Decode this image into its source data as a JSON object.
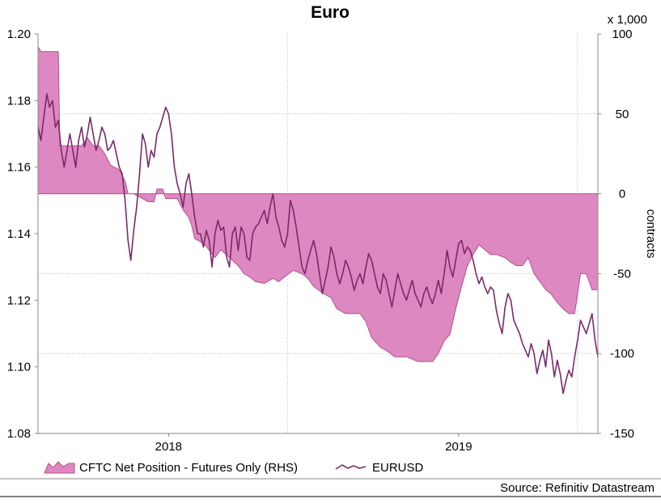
{
  "chart_data": {
    "type": "area+line",
    "title": "Euro",
    "left_axis": {
      "min": 1.08,
      "max": 1.2,
      "ticks": [
        "1.20",
        "1.18",
        "1.16",
        "1.14",
        "1.12",
        "1.10",
        "1.08"
      ]
    },
    "right_axis": {
      "min": -150,
      "max": 100,
      "ticks": [
        "100",
        "50",
        "0",
        "-50",
        "-100",
        "-150"
      ],
      "unit_note": "x 1,000",
      "label": "contracts"
    },
    "x_axis": {
      "start": 2017.55,
      "end": 2019.48,
      "labels": [
        {
          "text": "2018",
          "at": 2018.0
        },
        {
          "text": "2019",
          "at": 2019.0
        }
      ]
    },
    "colors": {
      "area_fill": "#dd88c0",
      "area_edge": "#b4508f",
      "line": "#7b2a69",
      "grid": "#bbbbbb",
      "axis": "#888888"
    },
    "series": [
      {
        "name": "CFTC Net Position - Futures Only (RHS)",
        "kind": "area",
        "axis": "right",
        "points": [
          [
            2017.55,
            92
          ],
          [
            2017.56,
            89
          ],
          [
            2017.62,
            89
          ],
          [
            2017.625,
            30
          ],
          [
            2017.7,
            30
          ],
          [
            2017.72,
            35
          ],
          [
            2017.74,
            30
          ],
          [
            2017.76,
            30
          ],
          [
            2017.78,
            25
          ],
          [
            2017.8,
            18
          ],
          [
            2017.83,
            15
          ],
          [
            2017.85,
            8
          ],
          [
            2017.86,
            0
          ],
          [
            2017.88,
            0
          ],
          [
            2017.9,
            -2
          ],
          [
            2017.93,
            -5
          ],
          [
            2017.95,
            -5
          ],
          [
            2017.96,
            3
          ],
          [
            2017.98,
            3
          ],
          [
            2017.99,
            -3
          ],
          [
            2018.01,
            -3
          ],
          [
            2018.03,
            -3
          ],
          [
            2018.05,
            -10
          ],
          [
            2018.07,
            -15
          ],
          [
            2018.08,
            -20
          ],
          [
            2018.09,
            -28
          ],
          [
            2018.11,
            -30
          ],
          [
            2018.13,
            -33
          ],
          [
            2018.16,
            -40
          ],
          [
            2018.18,
            -35
          ],
          [
            2018.21,
            -40
          ],
          [
            2018.24,
            -45
          ],
          [
            2018.26,
            -50
          ],
          [
            2018.28,
            -52
          ],
          [
            2018.3,
            -55
          ],
          [
            2018.33,
            -56
          ],
          [
            2018.36,
            -53
          ],
          [
            2018.38,
            -55
          ],
          [
            2018.4,
            -52
          ],
          [
            2018.43,
            -48
          ],
          [
            2018.46,
            -50
          ],
          [
            2018.48,
            -53
          ],
          [
            2018.5,
            -58
          ],
          [
            2018.53,
            -62
          ],
          [
            2018.56,
            -65
          ],
          [
            2018.58,
            -72
          ],
          [
            2018.61,
            -75
          ],
          [
            2018.63,
            -75
          ],
          [
            2018.66,
            -75
          ],
          [
            2018.68,
            -80
          ],
          [
            2018.7,
            -90
          ],
          [
            2018.73,
            -96
          ],
          [
            2018.75,
            -98
          ],
          [
            2018.78,
            -102
          ],
          [
            2018.82,
            -102
          ],
          [
            2018.86,
            -105
          ],
          [
            2018.89,
            -105
          ],
          [
            2018.91,
            -105
          ],
          [
            2018.93,
            -100
          ],
          [
            2018.95,
            -92
          ],
          [
            2018.97,
            -88
          ],
          [
            2018.99,
            -72
          ],
          [
            2019.01,
            -58
          ],
          [
            2019.03,
            -45
          ],
          [
            2019.05,
            -38
          ],
          [
            2019.07,
            -32
          ],
          [
            2019.09,
            -35
          ],
          [
            2019.11,
            -38
          ],
          [
            2019.13,
            -38
          ],
          [
            2019.16,
            -40
          ],
          [
            2019.18,
            -43
          ],
          [
            2019.2,
            -45
          ],
          [
            2019.22,
            -45
          ],
          [
            2019.24,
            -40
          ],
          [
            2019.26,
            -50
          ],
          [
            2019.28,
            -55
          ],
          [
            2019.3,
            -60
          ],
          [
            2019.32,
            -63
          ],
          [
            2019.34,
            -68
          ],
          [
            2019.36,
            -72
          ],
          [
            2019.38,
            -75
          ],
          [
            2019.4,
            -75
          ],
          [
            2019.42,
            -50
          ],
          [
            2019.44,
            -50
          ],
          [
            2019.46,
            -60
          ],
          [
            2019.47,
            -60
          ],
          [
            2019.48,
            -60
          ]
        ]
      },
      {
        "name": "EURUSD",
        "kind": "line",
        "axis": "left",
        "points": [
          [
            2017.55,
            1.172
          ],
          [
            2017.56,
            1.168
          ],
          [
            2017.57,
            1.175
          ],
          [
            2017.58,
            1.182
          ],
          [
            2017.59,
            1.178
          ],
          [
            2017.6,
            1.18
          ],
          [
            2017.61,
            1.172
          ],
          [
            2017.62,
            1.174
          ],
          [
            2017.63,
            1.165
          ],
          [
            2017.64,
            1.16
          ],
          [
            2017.65,
            1.165
          ],
          [
            2017.66,
            1.17
          ],
          [
            2017.67,
            1.165
          ],
          [
            2017.68,
            1.16
          ],
          [
            2017.69,
            1.168
          ],
          [
            2017.7,
            1.172
          ],
          [
            2017.71,
            1.166
          ],
          [
            2017.72,
            1.17
          ],
          [
            2017.73,
            1.175
          ],
          [
            2017.74,
            1.17
          ],
          [
            2017.75,
            1.165
          ],
          [
            2017.76,
            1.168
          ],
          [
            2017.77,
            1.172
          ],
          [
            2017.78,
            1.17
          ],
          [
            2017.79,
            1.165
          ],
          [
            2017.8,
            1.166
          ],
          [
            2017.81,
            1.168
          ],
          [
            2017.82,
            1.164
          ],
          [
            2017.83,
            1.16
          ],
          [
            2017.84,
            1.158
          ],
          [
            2017.85,
            1.15
          ],
          [
            2017.86,
            1.138
          ],
          [
            2017.87,
            1.132
          ],
          [
            2017.88,
            1.141
          ],
          [
            2017.89,
            1.148
          ],
          [
            2017.9,
            1.158
          ],
          [
            2017.91,
            1.17
          ],
          [
            2017.92,
            1.167
          ],
          [
            2017.93,
            1.16
          ],
          [
            2017.94,
            1.165
          ],
          [
            2017.95,
            1.163
          ],
          [
            2017.96,
            1.17
          ],
          [
            2017.97,
            1.172
          ],
          [
            2017.98,
            1.175
          ],
          [
            2017.99,
            1.178
          ],
          [
            2018.0,
            1.176
          ],
          [
            2018.01,
            1.17
          ],
          [
            2018.02,
            1.16
          ],
          [
            2018.03,
            1.155
          ],
          [
            2018.04,
            1.152
          ],
          [
            2018.05,
            1.148
          ],
          [
            2018.06,
            1.155
          ],
          [
            2018.07,
            1.158
          ],
          [
            2018.08,
            1.152
          ],
          [
            2018.09,
            1.145
          ],
          [
            2018.1,
            1.14
          ],
          [
            2018.11,
            1.14
          ],
          [
            2018.12,
            1.136
          ],
          [
            2018.13,
            1.141
          ],
          [
            2018.14,
            1.138
          ],
          [
            2018.15,
            1.13
          ],
          [
            2018.16,
            1.14
          ],
          [
            2018.17,
            1.144
          ],
          [
            2018.18,
            1.141
          ],
          [
            2018.19,
            1.142
          ],
          [
            2018.2,
            1.133
          ],
          [
            2018.21,
            1.13
          ],
          [
            2018.22,
            1.14
          ],
          [
            2018.23,
            1.142
          ],
          [
            2018.24,
            1.135
          ],
          [
            2018.25,
            1.142
          ],
          [
            2018.26,
            1.14
          ],
          [
            2018.27,
            1.133
          ],
          [
            2018.28,
            1.132
          ],
          [
            2018.29,
            1.14
          ],
          [
            2018.3,
            1.142
          ],
          [
            2018.31,
            1.143
          ],
          [
            2018.32,
            1.145
          ],
          [
            2018.33,
            1.147
          ],
          [
            2018.34,
            1.143
          ],
          [
            2018.35,
            1.148
          ],
          [
            2018.36,
            1.152
          ],
          [
            2018.37,
            1.145
          ],
          [
            2018.38,
            1.142
          ],
          [
            2018.39,
            1.138
          ],
          [
            2018.4,
            1.136
          ],
          [
            2018.41,
            1.14
          ],
          [
            2018.42,
            1.15
          ],
          [
            2018.43,
            1.147
          ],
          [
            2018.44,
            1.142
          ],
          [
            2018.45,
            1.136
          ],
          [
            2018.46,
            1.13
          ],
          [
            2018.47,
            1.128
          ],
          [
            2018.48,
            1.132
          ],
          [
            2018.49,
            1.135
          ],
          [
            2018.5,
            1.138
          ],
          [
            2018.51,
            1.134
          ],
          [
            2018.52,
            1.128
          ],
          [
            2018.53,
            1.122
          ],
          [
            2018.54,
            1.126
          ],
          [
            2018.55,
            1.13
          ],
          [
            2018.56,
            1.136
          ],
          [
            2018.57,
            1.133
          ],
          [
            2018.58,
            1.128
          ],
          [
            2018.59,
            1.125
          ],
          [
            2018.6,
            1.128
          ],
          [
            2018.61,
            1.132
          ],
          [
            2018.62,
            1.13
          ],
          [
            2018.63,
            1.127
          ],
          [
            2018.64,
            1.123
          ],
          [
            2018.65,
            1.126
          ],
          [
            2018.66,
            1.128
          ],
          [
            2018.67,
            1.125
          ],
          [
            2018.68,
            1.13
          ],
          [
            2018.69,
            1.134
          ],
          [
            2018.7,
            1.132
          ],
          [
            2018.71,
            1.128
          ],
          [
            2018.72,
            1.124
          ],
          [
            2018.73,
            1.122
          ],
          [
            2018.74,
            1.128
          ],
          [
            2018.75,
            1.126
          ],
          [
            2018.76,
            1.122
          ],
          [
            2018.77,
            1.118
          ],
          [
            2018.78,
            1.123
          ],
          [
            2018.79,
            1.128
          ],
          [
            2018.8,
            1.125
          ],
          [
            2018.81,
            1.122
          ],
          [
            2018.82,
            1.12
          ],
          [
            2018.83,
            1.123
          ],
          [
            2018.84,
            1.126
          ],
          [
            2018.85,
            1.122
          ],
          [
            2018.86,
            1.12
          ],
          [
            2018.87,
            1.118
          ],
          [
            2018.88,
            1.122
          ],
          [
            2018.89,
            1.124
          ],
          [
            2018.9,
            1.121
          ],
          [
            2018.91,
            1.119
          ],
          [
            2018.92,
            1.122
          ],
          [
            2018.93,
            1.126
          ],
          [
            2018.94,
            1.122
          ],
          [
            2018.95,
            1.128
          ],
          [
            2018.96,
            1.135
          ],
          [
            2018.97,
            1.13
          ],
          [
            2018.98,
            1.127
          ],
          [
            2018.99,
            1.132
          ],
          [
            2019.0,
            1.137
          ],
          [
            2019.01,
            1.138
          ],
          [
            2019.02,
            1.134
          ],
          [
            2019.03,
            1.136
          ],
          [
            2019.04,
            1.135
          ],
          [
            2019.05,
            1.132
          ],
          [
            2019.06,
            1.128
          ],
          [
            2019.07,
            1.125
          ],
          [
            2019.08,
            1.127
          ],
          [
            2019.09,
            1.124
          ],
          [
            2019.1,
            1.122
          ],
          [
            2019.11,
            1.124
          ],
          [
            2019.12,
            1.123
          ],
          [
            2019.13,
            1.117
          ],
          [
            2019.14,
            1.113
          ],
          [
            2019.15,
            1.11
          ],
          [
            2019.16,
            1.118
          ],
          [
            2019.17,
            1.122
          ],
          [
            2019.18,
            1.12
          ],
          [
            2019.19,
            1.114
          ],
          [
            2019.2,
            1.112
          ],
          [
            2019.21,
            1.11
          ],
          [
            2019.22,
            1.107
          ],
          [
            2019.23,
            1.105
          ],
          [
            2019.24,
            1.103
          ],
          [
            2019.25,
            1.107
          ],
          [
            2019.26,
            1.104
          ],
          [
            2019.27,
            1.098
          ],
          [
            2019.28,
            1.102
          ],
          [
            2019.29,
            1.105
          ],
          [
            2019.3,
            1.1
          ],
          [
            2019.31,
            1.108
          ],
          [
            2019.32,
            1.104
          ],
          [
            2019.33,
            1.097
          ],
          [
            2019.34,
            1.102
          ],
          [
            2019.35,
            1.098
          ],
          [
            2019.36,
            1.092
          ],
          [
            2019.37,
            1.096
          ],
          [
            2019.38,
            1.099
          ],
          [
            2019.39,
            1.097
          ],
          [
            2019.4,
            1.103
          ],
          [
            2019.41,
            1.108
          ],
          [
            2019.42,
            1.114
          ],
          [
            2019.43,
            1.112
          ],
          [
            2019.44,
            1.11
          ],
          [
            2019.45,
            1.113
          ],
          [
            2019.46,
            1.116
          ],
          [
            2019.47,
            1.108
          ],
          [
            2019.48,
            1.103
          ]
        ]
      }
    ],
    "legend": [
      {
        "label": "CFTC Net Position - Futures Only (RHS)",
        "kind": "area"
      },
      {
        "label": "EURUSD",
        "kind": "line"
      }
    ],
    "source": "Source: Refinitiv Datastream"
  }
}
